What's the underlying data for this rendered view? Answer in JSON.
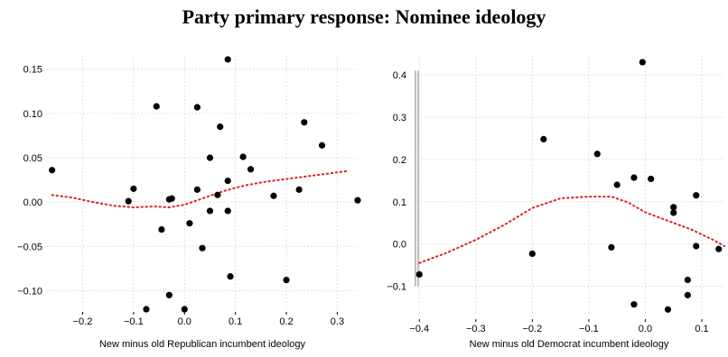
{
  "title": "Party primary response: Nominee ideology",
  "chart_data": [
    {
      "type": "scatter",
      "xlabel": "New minus old Republican incumbent ideology",
      "ylabel": "",
      "xlim": [
        -0.27,
        0.34
      ],
      "ylim": [
        -0.122,
        0.165
      ],
      "xticks": [
        -0.2,
        -0.1,
        0.0,
        0.1,
        0.2,
        0.3
      ],
      "xtick_labels": [
        "−0.2",
        "−0.1",
        "0.0",
        "0.1",
        "0.2",
        "0.3"
      ],
      "yticks": [
        -0.1,
        -0.05,
        0.0,
        0.05,
        0.1,
        0.15
      ],
      "ytick_labels": [
        "−0.10",
        "−0.05",
        "0.00",
        "0.05",
        "0.10",
        "0.15"
      ],
      "grid": true,
      "points": [
        {
          "x": -0.26,
          "y": 0.036
        },
        {
          "x": -0.11,
          "y": 0.001
        },
        {
          "x": -0.1,
          "y": 0.015
        },
        {
          "x": -0.055,
          "y": 0.108
        },
        {
          "x": -0.045,
          "y": -0.031
        },
        {
          "x": -0.03,
          "y": 0.003
        },
        {
          "x": -0.025,
          "y": 0.004
        },
        {
          "x": -0.03,
          "y": -0.105
        },
        {
          "x": -0.075,
          "y": -0.121
        },
        {
          "x": 0.0,
          "y": -0.121
        },
        {
          "x": 0.01,
          "y": -0.024
        },
        {
          "x": 0.025,
          "y": 0.107
        },
        {
          "x": 0.025,
          "y": 0.014
        },
        {
          "x": 0.035,
          "y": -0.052
        },
        {
          "x": 0.05,
          "y": 0.05
        },
        {
          "x": 0.05,
          "y": -0.01
        },
        {
          "x": 0.065,
          "y": 0.008
        },
        {
          "x": 0.07,
          "y": 0.085
        },
        {
          "x": 0.085,
          "y": 0.024
        },
        {
          "x": 0.085,
          "y": -0.01
        },
        {
          "x": 0.09,
          "y": -0.084
        },
        {
          "x": 0.085,
          "y": 0.161
        },
        {
          "x": 0.115,
          "y": 0.051
        },
        {
          "x": 0.13,
          "y": 0.037
        },
        {
          "x": 0.175,
          "y": 0.007
        },
        {
          "x": 0.2,
          "y": -0.088
        },
        {
          "x": 0.225,
          "y": 0.014
        },
        {
          "x": 0.235,
          "y": 0.09
        },
        {
          "x": 0.27,
          "y": 0.064
        },
        {
          "x": 0.34,
          "y": 0.002
        }
      ],
      "smooth": {
        "x": [
          -0.26,
          -0.22,
          -0.18,
          -0.14,
          -0.1,
          -0.06,
          -0.03,
          0.0,
          0.04,
          0.08,
          0.12,
          0.16,
          0.2,
          0.24,
          0.28,
          0.32
        ],
        "y": [
          0.008,
          0.005,
          0.0,
          -0.004,
          -0.006,
          -0.005,
          -0.006,
          -0.003,
          0.005,
          0.013,
          0.019,
          0.023,
          0.026,
          0.029,
          0.032,
          0.035
        ]
      },
      "colors": {
        "points": "#000000",
        "smooth": "#dd2222",
        "grid": "#e0e0e0"
      }
    },
    {
      "type": "scatter",
      "xlabel": "New minus old Democrat incumbent ideology",
      "ylabel": "",
      "xlim": [
        -0.41,
        0.14
      ],
      "ylim": [
        -0.165,
        0.445
      ],
      "xticks": [
        -0.4,
        -0.3,
        -0.2,
        -0.1,
        0.0,
        0.1
      ],
      "xtick_labels": [
        "−0.4",
        "−0.3",
        "−0.2",
        "−0.1",
        "0.0",
        "0.1"
      ],
      "yticks": [
        -0.1,
        0.0,
        0.1,
        0.2,
        0.3,
        0.4
      ],
      "ytick_labels": [
        "−0.1",
        "0.0",
        "0.1",
        "0.2",
        "0.3",
        "0.4"
      ],
      "grid": true,
      "points": [
        {
          "x": -0.4,
          "y": -0.072
        },
        {
          "x": -0.2,
          "y": -0.023
        },
        {
          "x": -0.18,
          "y": 0.248
        },
        {
          "x": -0.085,
          "y": 0.213
        },
        {
          "x": -0.06,
          "y": -0.008
        },
        {
          "x": -0.05,
          "y": 0.14
        },
        {
          "x": -0.02,
          "y": 0.157
        },
        {
          "x": -0.02,
          "y": -0.143
        },
        {
          "x": -0.005,
          "y": 0.43
        },
        {
          "x": 0.01,
          "y": 0.154
        },
        {
          "x": 0.04,
          "y": -0.155
        },
        {
          "x": 0.05,
          "y": 0.087
        },
        {
          "x": 0.05,
          "y": 0.074
        },
        {
          "x": 0.075,
          "y": -0.085
        },
        {
          "x": 0.075,
          "y": -0.121
        },
        {
          "x": 0.09,
          "y": 0.115
        },
        {
          "x": 0.09,
          "y": -0.005
        },
        {
          "x": 0.13,
          "y": -0.012
        }
      ],
      "smooth": {
        "x": [
          -0.4,
          -0.35,
          -0.3,
          -0.25,
          -0.2,
          -0.15,
          -0.1,
          -0.06,
          -0.03,
          0.0,
          0.04,
          0.08,
          0.12,
          0.14
        ],
        "y": [
          -0.045,
          -0.02,
          0.01,
          0.045,
          0.085,
          0.108,
          0.112,
          0.112,
          0.098,
          0.075,
          0.055,
          0.035,
          0.01,
          -0.005
        ]
      },
      "rug": {
        "y": [
          -0.1,
          0.41
        ]
      },
      "colors": {
        "points": "#000000",
        "smooth": "#dd2222",
        "grid": "#e0e0e0",
        "rug": "#c0c0c0"
      }
    }
  ]
}
